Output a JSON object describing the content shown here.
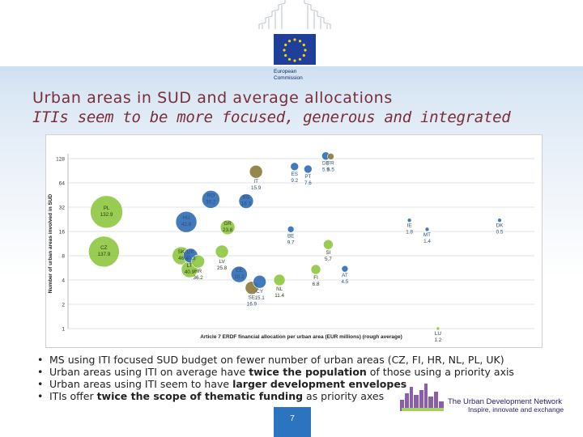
{
  "header": {
    "logo_line1": "European",
    "logo_line2": "Commission"
  },
  "title": "Urban areas in SUD and average allocations",
  "subtitle": "ITIs seem to be more focused, generous and integrated",
  "colors": {
    "iti_green": "#8dc63f",
    "priority_blue": "#2e6db4",
    "mixed_olive": "#8b7a3a",
    "title": "#7a2e3a"
  },
  "chart_data": {
    "type": "scatter",
    "title": "",
    "xlabel": "Article 7 ERDF financial allocation per urban area (EUR millions) (rough average)",
    "ylabel": "Number of urban areas involved in SUD",
    "yscale": "log2",
    "yticks": [
      1,
      2,
      4,
      8,
      16,
      32,
      64,
      128
    ],
    "ylim": [
      1,
      128
    ],
    "grid": true,
    "points": [
      {
        "label": "PL",
        "x": 132.9,
        "y": 28,
        "group": "iti",
        "size": 20
      },
      {
        "label": "CZ",
        "x": 137.9,
        "y": 9,
        "group": "iti",
        "size": 19
      },
      {
        "label": "HU",
        "x": 42.8,
        "y": 21,
        "group": "priority",
        "size": 13
      },
      {
        "label": "SK",
        "x": 46.0,
        "y": 8,
        "group": "iti",
        "size": 11
      },
      {
        "label": "LT",
        "x": 40.9,
        "y": 5.4,
        "group": "iti",
        "size": 10
      },
      {
        "label": "UK",
        "x": 40.3,
        "y": 8,
        "group": "priority",
        "size": 9
      },
      {
        "label": "HR",
        "x": 36.2,
        "y": 6.8,
        "group": "iti",
        "size": 8
      },
      {
        "label": "RO",
        "x": 30.2,
        "y": 40,
        "group": "priority",
        "size": 11
      },
      {
        "label": "GR",
        "x": 23.8,
        "y": 18,
        "group": "iti",
        "size": 9
      },
      {
        "label": "LV",
        "x": 25.8,
        "y": 9,
        "group": "iti",
        "size": 8
      },
      {
        "label": "BG",
        "x": 18.3,
        "y": 38,
        "group": "priority",
        "size": 9
      },
      {
        "label": "IT",
        "x": 15.9,
        "y": 88,
        "group": "mixed",
        "size": 8
      },
      {
        "label": "EE",
        "x": 20.2,
        "y": 4.7,
        "group": "priority",
        "size": 10
      },
      {
        "label": "SE",
        "x": 16.9,
        "y": 3.2,
        "group": "mixed",
        "size": 8
      },
      {
        "label": "CY",
        "x": 15.1,
        "y": 3.8,
        "group": "priority",
        "size": 8
      },
      {
        "label": "NL",
        "x": 11.4,
        "y": 4.0,
        "group": "iti",
        "size": 7
      },
      {
        "label": "ES",
        "x": 9.2,
        "y": 102,
        "group": "priority",
        "size": 5
      },
      {
        "label": "PT",
        "x": 7.6,
        "y": 95,
        "group": "priority",
        "size": 5
      },
      {
        "label": "DE",
        "x": 5.9,
        "y": 138,
        "group": "priority",
        "size": 5
      },
      {
        "label": "FR",
        "x": 5.5,
        "y": 136,
        "group": "mixed",
        "size": 4
      },
      {
        "label": "BE",
        "x": 9.7,
        "y": 17,
        "group": "priority",
        "size": 4
      },
      {
        "label": "SI",
        "x": 5.7,
        "y": 11,
        "group": "iti",
        "size": 6
      },
      {
        "label": "FI",
        "x": 6.8,
        "y": 5.4,
        "group": "iti",
        "size": 6
      },
      {
        "label": "AT",
        "x": 4.5,
        "y": 5.5,
        "group": "priority",
        "size": 4
      },
      {
        "label": "IE",
        "x": 1.8,
        "y": 22,
        "group": "priority",
        "size": 2.5
      },
      {
        "label": "MT",
        "x": 1.4,
        "y": 17,
        "group": "priority",
        "size": 2.5
      },
      {
        "label": "DK",
        "x": 0.5,
        "y": 22,
        "group": "priority",
        "size": 2.5
      },
      {
        "label": "LU",
        "x": 1.2,
        "y": 1,
        "group": "iti",
        "size": 2
      }
    ]
  },
  "bullets": [
    {
      "parts": [
        {
          "t": "MS using ITI focused SUD budget on fewer number of urban areas (CZ, FI, HR, NL, PL, UK)",
          "b": false
        }
      ]
    },
    {
      "parts": [
        {
          "t": "Urban areas using ITI on average have ",
          "b": false
        },
        {
          "t": "twice the population",
          "b": true
        },
        {
          "t": " of those using a priority axis",
          "b": false
        }
      ]
    },
    {
      "parts": [
        {
          "t": "Urban areas using ITI seem to have ",
          "b": false
        },
        {
          "t": "larger development envelopes",
          "b": true
        }
      ]
    },
    {
      "parts": [
        {
          "t": "ITIs offer ",
          "b": false
        },
        {
          "t": "twice the scope of thematic funding",
          "b": true
        },
        {
          "t": " as priority axes",
          "b": false
        }
      ]
    }
  ],
  "footer": {
    "network_name": "The Urban Development Network",
    "tagline": "Inspire, innovate and exchange",
    "page_number": "7"
  }
}
